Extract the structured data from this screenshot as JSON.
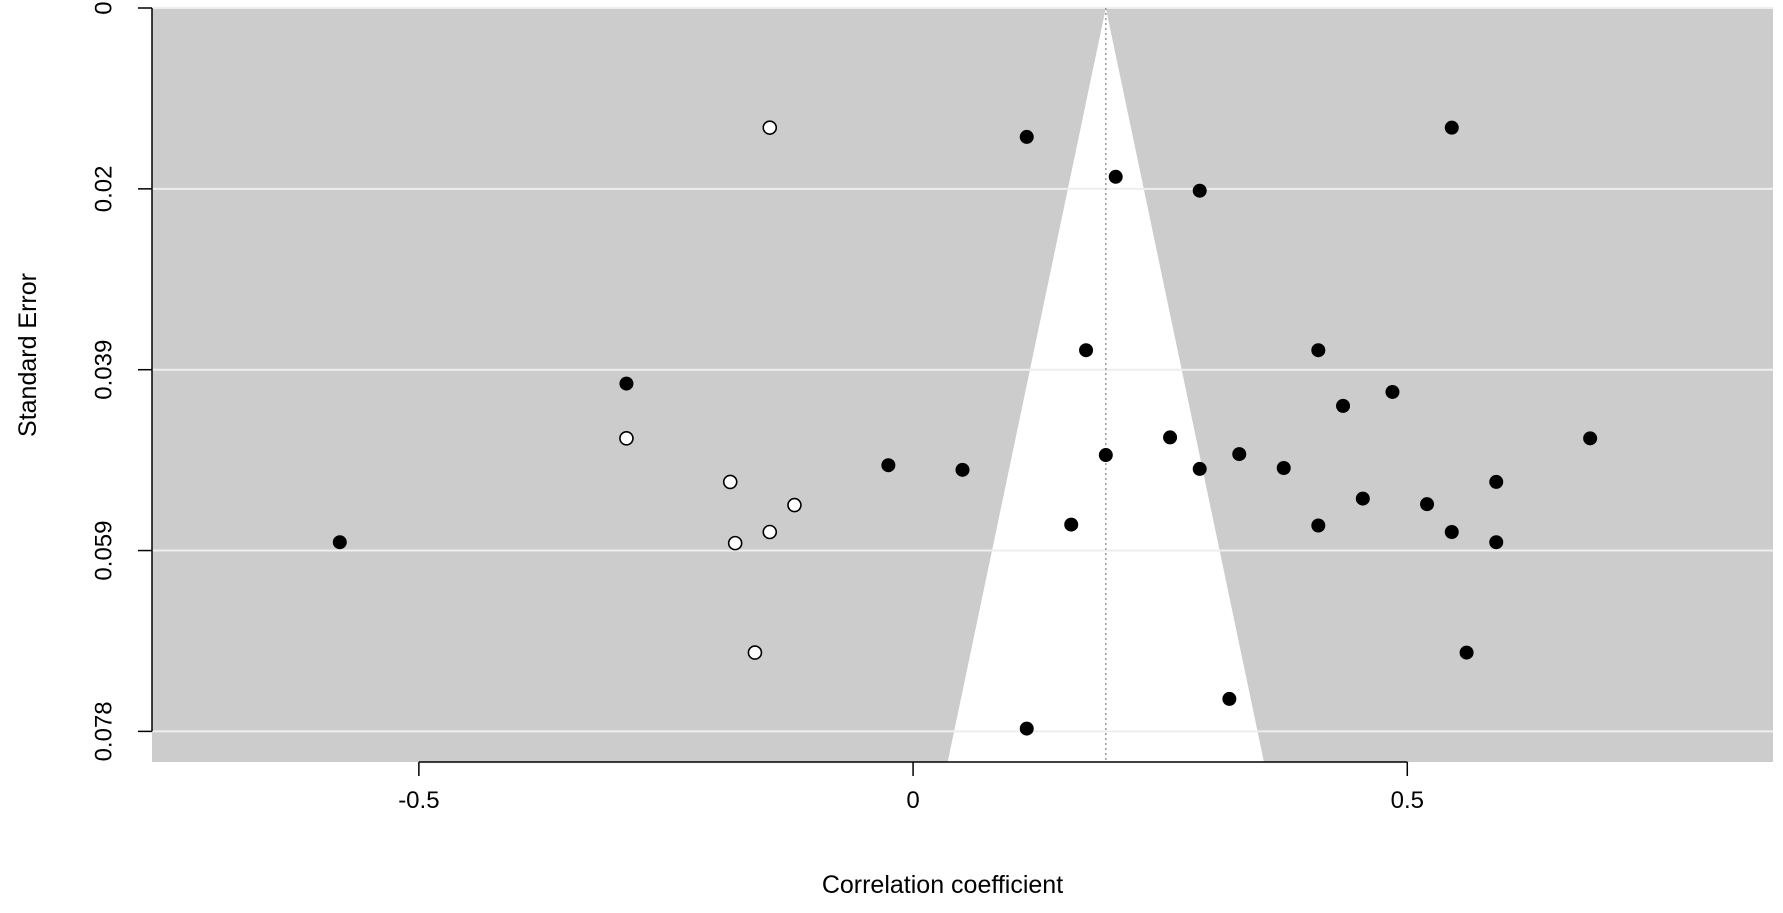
{
  "chart_data": {
    "type": "scatter",
    "subtype": "funnel plot",
    "title": "",
    "xlabel": "Correlation coefficient",
    "ylabel": "Standard Error",
    "xlim": [
      -0.77,
      0.87
    ],
    "ylim": [
      0.0813,
      0
    ],
    "y_axis_inverted": true,
    "x_ticks": [
      -0.5,
      0,
      0.5
    ],
    "x_tick_labels": [
      "-0.5",
      "0",
      "0.5"
    ],
    "y_ticks": [
      0,
      0.0195,
      0.039,
      0.0585,
      0.078
    ],
    "y_tick_labels": [
      "0",
      "0.02",
      "0.039",
      "0.059",
      "0.078"
    ],
    "grid": true,
    "grid_axis": "y",
    "funnel": {
      "center": 0.195,
      "apex_se": 0,
      "base_se": 0.0813,
      "base_x": [
        0.035,
        0.355
      ],
      "center_line": "dotted"
    },
    "colors": {
      "plot_background": "#cccccc",
      "funnel_fill": "#ffffff",
      "gridline": "#eeeeee",
      "observed_point": "#000000",
      "imputed_point_fill": "#ffffff",
      "imputed_point_stroke": "#000000"
    },
    "series": [
      {
        "marker": "filled",
        "points": [
          [
            0.115,
            0.0139
          ],
          [
            0.545,
            0.0129
          ],
          [
            0.205,
            0.0182
          ],
          [
            0.29,
            0.0197
          ],
          [
            0.175,
            0.0369
          ],
          [
            0.41,
            0.0369
          ],
          [
            0.485,
            0.0414
          ],
          [
            0.435,
            0.0429
          ],
          [
            -0.29,
            0.0405
          ],
          [
            -0.58,
            0.0576
          ],
          [
            -0.025,
            0.0493
          ],
          [
            0.05,
            0.0498
          ],
          [
            0.195,
            0.0482
          ],
          [
            0.26,
            0.0463
          ],
          [
            0.29,
            0.0497
          ],
          [
            0.33,
            0.0481
          ],
          [
            0.375,
            0.0496
          ],
          [
            0.685,
            0.0464
          ],
          [
            0.455,
            0.0529
          ],
          [
            0.52,
            0.0535
          ],
          [
            0.59,
            0.0511
          ],
          [
            0.16,
            0.0557
          ],
          [
            0.41,
            0.0558
          ],
          [
            0.545,
            0.0565
          ],
          [
            0.59,
            0.0576
          ],
          [
            0.56,
            0.0695
          ],
          [
            0.32,
            0.0745
          ],
          [
            0.115,
            0.0777
          ]
        ]
      },
      {
        "marker": "open",
        "points": [
          [
            -0.145,
            0.0129
          ],
          [
            -0.29,
            0.0464
          ],
          [
            -0.185,
            0.0511
          ],
          [
            -0.12,
            0.0536
          ],
          [
            -0.18,
            0.0577
          ],
          [
            -0.145,
            0.0565
          ],
          [
            -0.16,
            0.0695
          ]
        ]
      }
    ]
  }
}
